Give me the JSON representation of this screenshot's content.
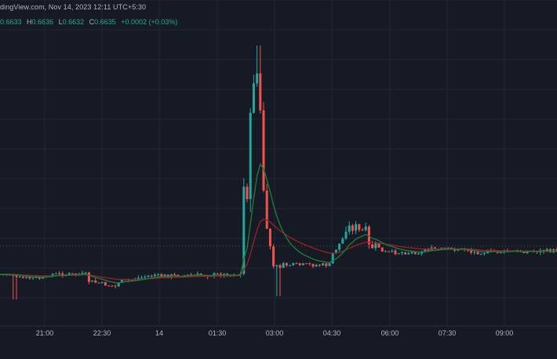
{
  "header": {
    "source_text": "dingView.com, Nov 14, 2023 12:11 UTC+5:30"
  },
  "ohlc": {
    "open": "0.6633",
    "high_label": "H",
    "high": "0.6636",
    "low_label": "L",
    "low": "0.6632",
    "close_label": "C",
    "close": "0.6635",
    "change": "+0.0002 (+0.03%)"
  },
  "colors": {
    "background": "#161a25",
    "grid": "#232632",
    "up": "#26a69a",
    "down": "#ef5350",
    "ma_fast": "#1f7a3a",
    "ma_slow": "#9a1c26",
    "axis_text": "#b2b5be"
  },
  "chart_data": {
    "type": "candlestick",
    "x_ticks": [
      "21:00",
      "22:30",
      "14",
      "01:30",
      "03:00",
      "04:30",
      "06:00",
      "07:30",
      "09:00"
    ],
    "candles_note": "",
    "segments": [
      {
        "from": "20:00",
        "to": "01:55",
        "level": 0.66335,
        "volatility": "low"
      },
      {
        "from": "01:55",
        "to": "02:25",
        "level": 0.6652,
        "volatility": "spike"
      },
      {
        "from": "02:25",
        "to": "04:20",
        "level": 0.6634,
        "volatility": "medium"
      },
      {
        "from": "04:20",
        "to": "05:20",
        "level": 0.664,
        "volatility": "bump"
      },
      {
        "from": "05:20",
        "to": "10:30",
        "level": 0.6634,
        "volatility": "low"
      }
    ],
    "moving_averages": [
      {
        "color": "#1f7a3a"
      },
      {
        "color": "#9a1c26"
      }
    ],
    "grid": true
  }
}
